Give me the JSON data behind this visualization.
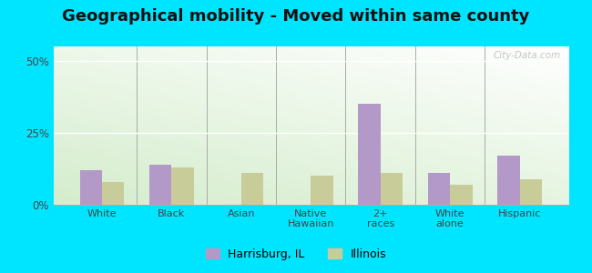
{
  "title": "Geographical mobility - Moved within same county",
  "categories": [
    "White",
    "Black",
    "Asian",
    "Native\nHawaiian",
    "2+\nraces",
    "White\nalone",
    "Hispanic"
  ],
  "harrisburg_values": [
    12,
    14,
    0,
    0,
    35,
    11,
    17
  ],
  "illinois_values": [
    8,
    13,
    11,
    10,
    11,
    7,
    9
  ],
  "harrisburg_color": "#b399c8",
  "illinois_color": "#c8cc99",
  "background_outer": "#00e5ff",
  "gradient_top": "#ffffff",
  "gradient_bottom_left": "#d4edcc",
  "yticks": [
    0,
    25,
    50
  ],
  "ytick_labels": [
    "0%",
    "25%",
    "50%"
  ],
  "ylim": [
    0,
    55
  ],
  "bar_width": 0.32,
  "legend_harrisburg": "Harrisburg, IL",
  "legend_illinois": "Illinois",
  "title_fontsize": 13,
  "watermark": "City-Data.com"
}
